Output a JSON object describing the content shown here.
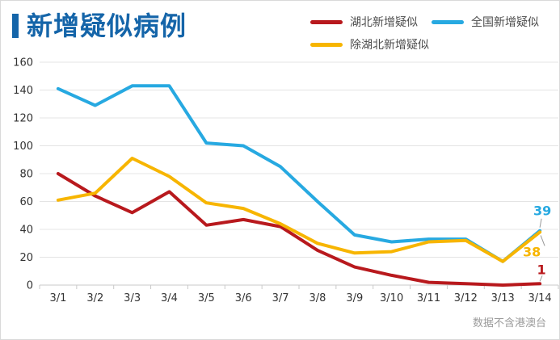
{
  "title": {
    "text": "新增疑似病例",
    "color": "#1565A9"
  },
  "legend": [
    {
      "key": "hubei",
      "label": "湖北新增疑似",
      "color": "#B8191D"
    },
    {
      "key": "national",
      "label": "全国新增疑似",
      "color": "#27A9E1"
    },
    {
      "key": "ex-hubei",
      "label": "除湖北新增疑似",
      "color": "#F7B500"
    }
  ],
  "footnote": "数据不含港澳台",
  "chart_data": {
    "type": "line",
    "title": "新增疑似病例",
    "xlabel": "",
    "ylabel": "",
    "categories": [
      "3/1",
      "3/2",
      "3/3",
      "3/4",
      "3/5",
      "3/6",
      "3/7",
      "3/8",
      "3/9",
      "3/10",
      "3/11",
      "3/12",
      "3/13",
      "3/14"
    ],
    "series": [
      {
        "key": "national",
        "name": "全国新增疑似",
        "color": "#27A9E1",
        "values": [
          141,
          129,
          143,
          143,
          102,
          100,
          85,
          60,
          36,
          31,
          33,
          33,
          17,
          39
        ],
        "end_label": "39"
      },
      {
        "key": "hubei",
        "name": "湖北新增疑似",
        "color": "#B8191D",
        "values": [
          80,
          64,
          52,
          67,
          43,
          47,
          42,
          25,
          13,
          7,
          2,
          1,
          0,
          1
        ],
        "end_label": "1"
      },
      {
        "key": "ex-hubei",
        "name": "除湖北新增疑似",
        "color": "#F7B500",
        "values": [
          61,
          66,
          91,
          78,
          59,
          55,
          44,
          30,
          23,
          24,
          31,
          32,
          17,
          38
        ],
        "end_label": "38"
      }
    ],
    "ylim": [
      0,
      160
    ],
    "yticks": [
      0,
      20,
      40,
      60,
      80,
      100,
      120,
      140,
      160
    ],
    "grid": true,
    "legend_position": "top-right",
    "axis_text_color": "#333333",
    "grid_color": "#e4e4e4",
    "axis_line_color": "#c9c9c9",
    "leader_line_color": "#999999"
  }
}
